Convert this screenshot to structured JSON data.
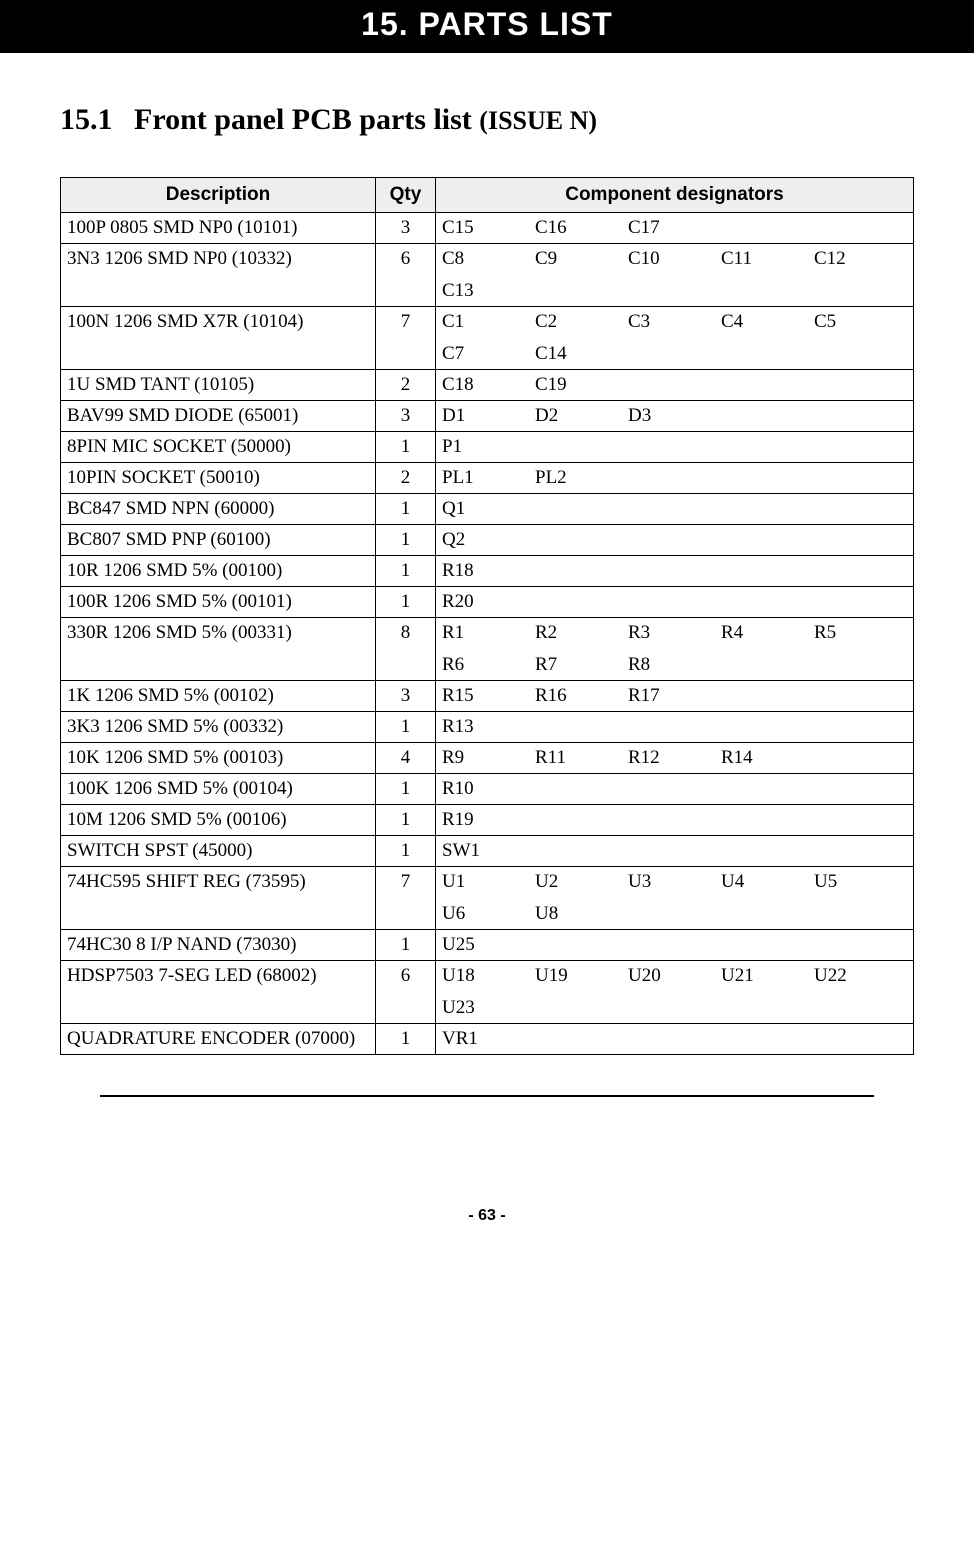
{
  "banner": "15.  PARTS LIST",
  "section": {
    "number": "15.1",
    "title": "Front panel PCB parts list",
    "issue": "(ISSUE N)"
  },
  "headers": {
    "desc": "Description",
    "qty": "Qty",
    "desig": "Component designators"
  },
  "rows": [
    {
      "desc": "100P 0805 SMD NP0 (10101)",
      "qty": "3",
      "d": [
        "C15",
        "C16",
        "C17"
      ]
    },
    {
      "desc": "3N3 1206 SMD NP0 (10332)",
      "qty": "6",
      "d": [
        "C8",
        "C9",
        "C10",
        "C11",
        "C12",
        "C13"
      ]
    },
    {
      "desc": "100N 1206 SMD X7R (10104)",
      "qty": "7",
      "d": [
        "C1",
        "C2",
        "C3",
        "C4",
        "C5",
        "C7",
        "C14"
      ]
    },
    {
      "desc": "1U SMD TANT (10105)",
      "qty": "2",
      "d": [
        "C18",
        "C19"
      ]
    },
    {
      "desc": "BAV99 SMD DIODE (65001)",
      "qty": "3",
      "d": [
        "D1",
        "D2",
        "D3"
      ]
    },
    {
      "desc": "8PIN MIC SOCKET (50000)",
      "qty": "1",
      "d": [
        "P1"
      ]
    },
    {
      "desc": "10PIN SOCKET (50010)",
      "qty": "2",
      "d": [
        "PL1",
        "PL2"
      ]
    },
    {
      "desc": "BC847 SMD NPN (60000)",
      "qty": "1",
      "d": [
        "Q1"
      ]
    },
    {
      "desc": "BC807 SMD PNP (60100)",
      "qty": "1",
      "d": [
        "Q2"
      ]
    },
    {
      "desc": "10R 1206 SMD 5% (00100)",
      "qty": "1",
      "d": [
        "R18"
      ]
    },
    {
      "desc": "100R 1206 SMD 5% (00101)",
      "qty": "1",
      "d": [
        "R20"
      ]
    },
    {
      "desc": "330R 1206 SMD 5% (00331)",
      "qty": "8",
      "d": [
        "R1",
        "R2",
        "R3",
        "R4",
        "R5",
        "R6",
        "R7",
        "R8"
      ]
    },
    {
      "desc": "1K 1206 SMD 5% (00102)",
      "qty": "3",
      "d": [
        "R15",
        "R16",
        "R17"
      ]
    },
    {
      "desc": "3K3 1206 SMD 5% (00332)",
      "qty": "1",
      "d": [
        "R13"
      ]
    },
    {
      "desc": "10K 1206 SMD 5% (00103)",
      "qty": "4",
      "d": [
        "R9",
        "R11",
        "R12",
        "R14"
      ]
    },
    {
      "desc": "100K 1206 SMD 5% (00104)",
      "qty": "1",
      "d": [
        "R10"
      ]
    },
    {
      "desc": "10M 1206 SMD 5% (00106)",
      "qty": "1",
      "d": [
        "R19"
      ]
    },
    {
      "desc": "SWITCH SPST (45000)",
      "qty": "1",
      "d": [
        "SW1"
      ]
    },
    {
      "desc": "74HC595 SHIFT REG (73595)",
      "qty": "7",
      "d": [
        "U1",
        "U2",
        "U3",
        "U4",
        "U5",
        "U6",
        "U8"
      ]
    },
    {
      "desc": "74HC30 8 I/P NAND (73030)",
      "qty": "1",
      "d": [
        "U25"
      ]
    },
    {
      "desc": "HDSP7503 7-SEG LED (68002)",
      "qty": "6",
      "d": [
        "U18",
        "U19",
        "U20",
        "U21",
        "U22",
        "U23"
      ]
    },
    {
      "desc": "QUADRATURE ENCODER (07000)",
      "qty": "1",
      "d": [
        "VR1"
      ]
    }
  ],
  "pageNumber": "- 63 -",
  "style": {
    "banner_bg": "#000000",
    "banner_fg": "#ffffff",
    "header_bg": "#eeeeee",
    "border_color": "#000000",
    "body_font": "Times New Roman",
    "header_font": "Arial",
    "banner_fontsize": 32,
    "section_fontsize": 30,
    "issue_fontsize": 26,
    "table_fontsize": 19,
    "pagenum_fontsize": 16,
    "designator_columns": 5
  }
}
